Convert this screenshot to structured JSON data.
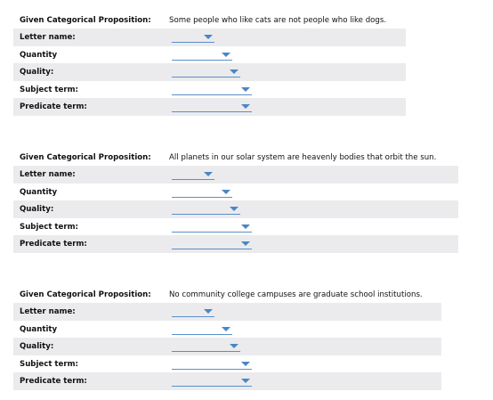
{
  "propositions": [
    {
      "given_label": "Given Categorical Proposition:",
      "statement": "Some people who like cats are not people who like dogs.",
      "fields": {
        "letter_name": "Letter name:",
        "quantity": "Quantity",
        "quality": "Quality:",
        "subject_term": "Subject term:",
        "predicate_term": "Predicate term:"
      }
    },
    {
      "given_label": "Given Categorical Proposition:",
      "statement": "All planets in our solar system are heavenly bodies that orbit the sun.",
      "fields": {
        "letter_name": "Letter name:",
        "quantity": "Quantity",
        "quality": "Quality:",
        "subject_term": "Subject term:",
        "predicate_term": "Predicate term:"
      }
    },
    {
      "given_label": "Given Categorical Proposition:",
      "statement": "No community college campuses are graduate school institutions.",
      "fields": {
        "letter_name": "Letter name:",
        "quantity": "Quantity",
        "quality": "Quality:",
        "subject_term": "Subject term:",
        "predicate_term": "Predicate term:"
      }
    }
  ],
  "icons": {
    "dropdown": "chevron-down-icon"
  },
  "colors": {
    "row_shade": "#ebebed",
    "dropdown_accent": "#4a86c5"
  }
}
